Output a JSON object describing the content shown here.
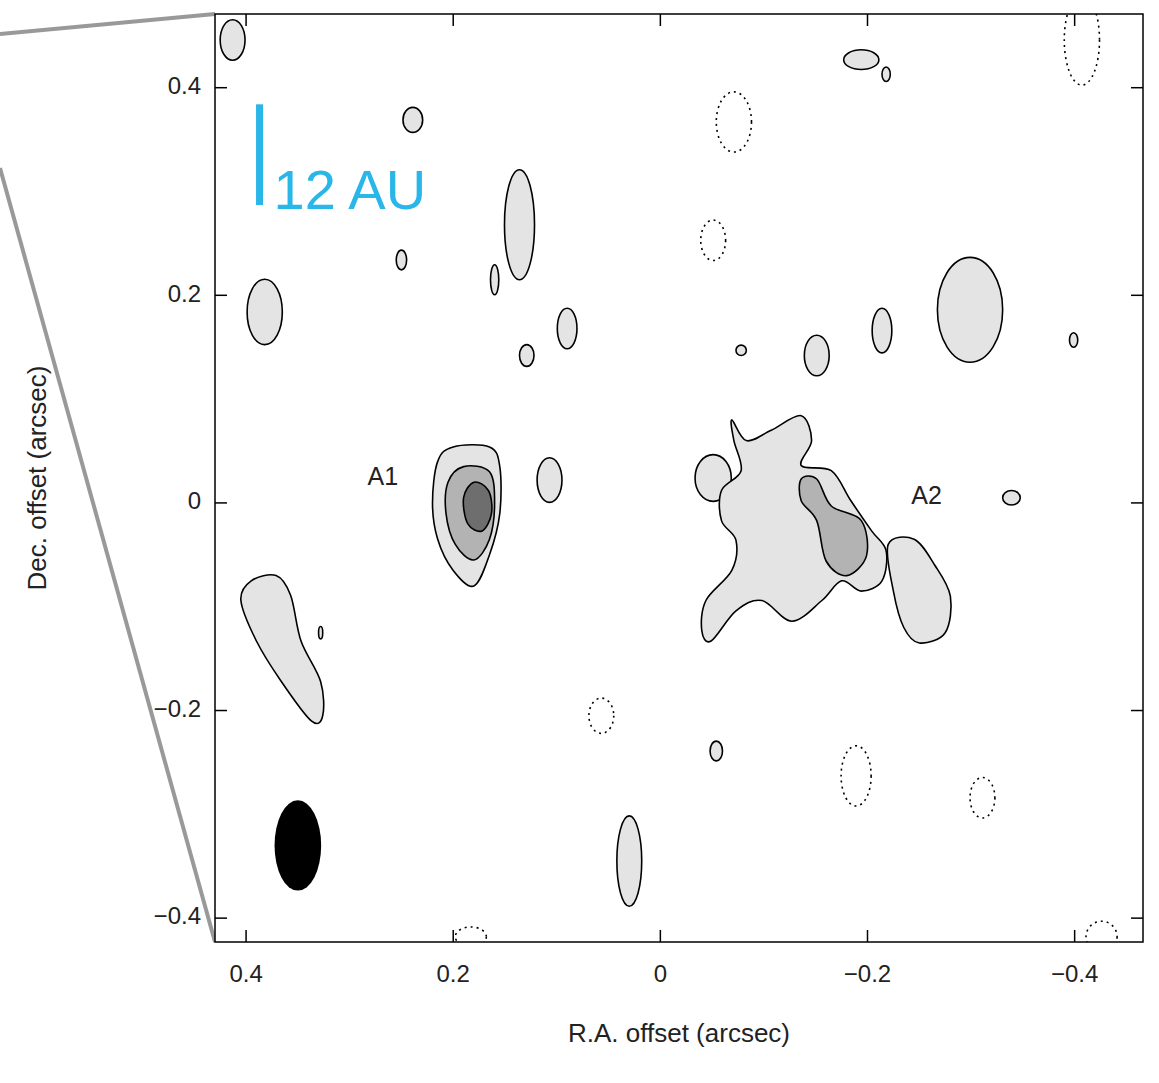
{
  "chart_data": {
    "type": "contour",
    "xlabel": "R.A. offset (arcsec)",
    "ylabel": "Dec. offset (arcsec)",
    "xlim": [
      0.43,
      -0.466
    ],
    "ylim": [
      -0.423,
      0.471
    ],
    "xticks": [
      0.4,
      0.2,
      0,
      {
        "value": -0.2,
        "label": "−0.2"
      },
      {
        "value": -0.4,
        "label": "−0.4"
      }
    ],
    "yticks": [
      {
        "value": -0.4,
        "label": "−0.4"
      },
      {
        "value": -0.2,
        "label": "−0.2"
      },
      0,
      0.2,
      0.4
    ],
    "contours": [
      {
        "level": 1,
        "line_style": "solid",
        "points": [
          [
            0.215,
            0.04
          ],
          [
            0.2,
            0.054
          ],
          [
            0.165,
            0.054
          ],
          [
            0.155,
            0.035
          ],
          [
            0.155,
            -0.01
          ],
          [
            0.165,
            -0.05
          ],
          [
            0.18,
            -0.08
          ],
          [
            0.2,
            -0.065
          ],
          [
            0.215,
            -0.035
          ],
          [
            0.22,
            0.0
          ]
        ]
      },
      {
        "level": 1,
        "line_style": "solid",
        "points": [
          [
            -0.069,
            0.08
          ],
          [
            -0.083,
            0.06
          ],
          [
            -0.107,
            0.07
          ],
          [
            -0.136,
            0.084
          ],
          [
            -0.146,
            0.06
          ],
          [
            -0.136,
            0.036
          ],
          [
            -0.165,
            0.031
          ],
          [
            -0.184,
            0.002
          ],
          [
            -0.204,
            -0.027
          ],
          [
            -0.218,
            -0.046
          ],
          [
            -0.214,
            -0.075
          ],
          [
            -0.194,
            -0.085
          ],
          [
            -0.175,
            -0.075
          ],
          [
            -0.156,
            -0.094
          ],
          [
            -0.127,
            -0.114
          ],
          [
            -0.098,
            -0.094
          ],
          [
            -0.073,
            -0.104
          ],
          [
            -0.049,
            -0.133
          ],
          [
            -0.04,
            -0.123
          ],
          [
            -0.044,
            -0.094
          ],
          [
            -0.069,
            -0.065
          ],
          [
            -0.073,
            -0.036
          ],
          [
            -0.059,
            -0.017
          ],
          [
            -0.059,
            0.012
          ],
          [
            -0.078,
            0.031
          ],
          [
            -0.071,
            0.06
          ]
        ]
      },
      {
        "level": 1,
        "line_style": "solid",
        "points": [
          [
            -0.22,
            -0.04
          ],
          [
            -0.245,
            -0.035
          ],
          [
            -0.265,
            -0.06
          ],
          [
            -0.28,
            -0.09
          ],
          [
            -0.275,
            -0.125
          ],
          [
            -0.25,
            -0.135
          ],
          [
            -0.235,
            -0.12
          ],
          [
            -0.225,
            -0.085
          ]
        ]
      },
      {
        "level": 1,
        "line_style": "solid",
        "points": [
          [
            0.395,
            -0.075
          ],
          [
            0.371,
            -0.07
          ],
          [
            0.357,
            -0.089
          ],
          [
            0.347,
            -0.133
          ],
          [
            0.328,
            -0.172
          ],
          [
            0.326,
            -0.205
          ],
          [
            0.337,
            -0.21
          ],
          [
            0.366,
            -0.172
          ],
          [
            0.39,
            -0.133
          ],
          [
            0.405,
            -0.094
          ]
        ]
      },
      {
        "level": 2,
        "line_style": "solid",
        "points": [
          [
            0.205,
            0.02
          ],
          [
            0.19,
            0.035
          ],
          [
            0.165,
            0.03
          ],
          [
            0.16,
            0.0
          ],
          [
            0.165,
            -0.035
          ],
          [
            0.18,
            -0.055
          ],
          [
            0.198,
            -0.04
          ],
          [
            0.207,
            -0.01
          ]
        ]
      },
      {
        "level": 2,
        "line_style": "solid",
        "points": [
          [
            -0.136,
            0.023
          ],
          [
            -0.151,
            0.023
          ],
          [
            -0.165,
            -0.003
          ],
          [
            -0.194,
            -0.017
          ],
          [
            -0.199,
            -0.051
          ],
          [
            -0.18,
            -0.07
          ],
          [
            -0.16,
            -0.056
          ],
          [
            -0.151,
            -0.017
          ],
          [
            -0.136,
            0.002
          ]
        ]
      },
      {
        "level": 3,
        "line_style": "solid",
        "points": [
          [
            0.19,
            0.005
          ],
          [
            0.18,
            0.02
          ],
          [
            0.166,
            0.012
          ],
          [
            0.163,
            -0.01
          ],
          [
            0.172,
            -0.027
          ],
          [
            0.186,
            -0.02
          ]
        ]
      }
    ],
    "blobs": [
      {
        "ra": 0.413,
        "dec": 0.446,
        "width": 0.024,
        "height": 0.039,
        "level": 1,
        "line_style": "solid"
      },
      {
        "ra": 0.239,
        "dec": 0.369,
        "width": 0.019,
        "height": 0.024,
        "level": 1,
        "line_style": "solid"
      },
      {
        "ra": 0.136,
        "dec": 0.268,
        "width": 0.029,
        "height": 0.106,
        "level": 1,
        "line_style": "solid"
      },
      {
        "ra": 0.25,
        "dec": 0.234,
        "width": 0.01,
        "height": 0.019,
        "level": 1,
        "line_style": "solid"
      },
      {
        "ra": 0.16,
        "dec": 0.215,
        "width": 0.008,
        "height": 0.029,
        "level": 1,
        "line_style": "solid"
      },
      {
        "ra": 0.129,
        "dec": 0.142,
        "width": 0.014,
        "height": 0.021,
        "level": 1,
        "line_style": "solid"
      },
      {
        "ra": 0.09,
        "dec": 0.168,
        "width": 0.019,
        "height": 0.039,
        "level": 1,
        "line_style": "solid"
      },
      {
        "ra": 0.382,
        "dec": 0.184,
        "width": 0.034,
        "height": 0.063,
        "level": 1,
        "line_style": "solid"
      },
      {
        "ra": 0.107,
        "dec": 0.022,
        "width": 0.024,
        "height": 0.043,
        "level": 1,
        "line_style": "solid"
      },
      {
        "ra": -0.194,
        "dec": 0.427,
        "width": 0.034,
        "height": 0.019,
        "level": 1,
        "line_style": "solid"
      },
      {
        "ra": -0.218,
        "dec": 0.413,
        "width": 0.008,
        "height": 0.014,
        "level": 1,
        "line_style": "solid"
      },
      {
        "ra": -0.078,
        "dec": 0.147,
        "width": 0.01,
        "height": 0.01,
        "level": 1,
        "line_style": "solid"
      },
      {
        "ra": -0.151,
        "dec": 0.142,
        "width": 0.024,
        "height": 0.039,
        "level": 1,
        "line_style": "solid"
      },
      {
        "ra": -0.214,
        "dec": 0.166,
        "width": 0.019,
        "height": 0.043,
        "level": 1,
        "line_style": "solid"
      },
      {
        "ra": -0.299,
        "dec": 0.186,
        "width": 0.063,
        "height": 0.101,
        "level": 1,
        "line_style": "solid"
      },
      {
        "ra": -0.399,
        "dec": 0.157,
        "width": 0.008,
        "height": 0.014,
        "level": 1,
        "line_style": "solid"
      },
      {
        "ra": -0.339,
        "dec": 0.005,
        "width": 0.017,
        "height": 0.014,
        "level": 1,
        "line_style": "solid"
      },
      {
        "ra": 0.03,
        "dec": -0.345,
        "width": 0.024,
        "height": 0.087,
        "level": 1,
        "line_style": "solid"
      },
      {
        "ra": -0.054,
        "dec": -0.239,
        "width": 0.012,
        "height": 0.019,
        "level": 1,
        "line_style": "solid"
      },
      {
        "ra": 0.328,
        "dec": -0.125,
        "width": 0.004,
        "height": 0.012,
        "level": 1,
        "line_style": "solid"
      },
      {
        "ra": -0.051,
        "dec": 0.024,
        "width": 0.035,
        "height": 0.045,
        "level": 1,
        "line_style": "solid"
      },
      {
        "ra": -0.071,
        "dec": 0.367,
        "width": 0.034,
        "height": 0.058,
        "level": -1,
        "line_style": "dotted"
      },
      {
        "ra": -0.051,
        "dec": 0.253,
        "width": 0.024,
        "height": 0.039,
        "level": -1,
        "line_style": "dotted"
      },
      {
        "ra": -0.407,
        "dec": 0.446,
        "width": 0.034,
        "height": 0.087,
        "level": -1,
        "line_style": "dotted"
      },
      {
        "ra": 0.057,
        "dec": -0.205,
        "width": 0.024,
        "height": 0.034,
        "level": -1,
        "line_style": "dotted"
      },
      {
        "ra": -0.189,
        "dec": -0.263,
        "width": 0.029,
        "height": 0.058,
        "level": -1,
        "line_style": "dotted"
      },
      {
        "ra": -0.311,
        "dec": -0.284,
        "width": 0.024,
        "height": 0.039,
        "level": -1,
        "line_style": "dotted"
      },
      {
        "ra": 0.183,
        "dec": -0.418,
        "width": 0.03,
        "height": 0.019,
        "level": -1,
        "line_style": "dotted"
      },
      {
        "ra": -0.426,
        "dec": -0.418,
        "width": 0.03,
        "height": 0.03,
        "level": -1,
        "line_style": "dotted"
      }
    ],
    "beam": {
      "ra": 0.35,
      "dec": -0.33,
      "width": 0.045,
      "height": 0.087
    },
    "scale_bar": {
      "label": "12 AU",
      "length": 0.097,
      "ra": 0.387,
      "dec": 0.384,
      "color": "#29b6e8"
    },
    "annotations": [
      {
        "text": "A1",
        "ra": 0.268,
        "dec": 0.024
      },
      {
        "text": "A2",
        "ra": -0.257,
        "dec": 0.005
      }
    ]
  }
}
